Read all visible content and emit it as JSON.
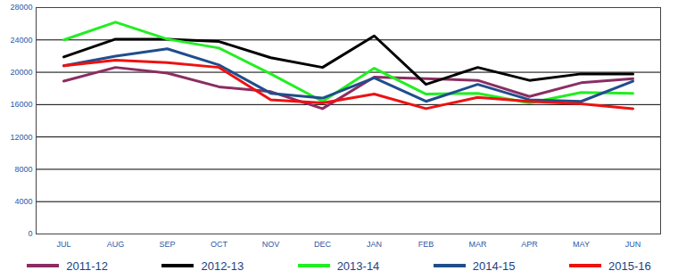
{
  "chart_data": {
    "type": "line",
    "categories": [
      "JUL",
      "AUG",
      "SEP",
      "OCT",
      "NOV",
      "DEC",
      "JAN",
      "FEB",
      "MAR",
      "APR",
      "MAY",
      "JUN"
    ],
    "series": [
      {
        "name": "2011-12",
        "color": "#8b2d62",
        "values": [
          18900,
          20600,
          19900,
          18200,
          17600,
          15500,
          19400,
          19200,
          19000,
          17000,
          18700,
          19200
        ]
      },
      {
        "name": "2012-13",
        "color": "#000000",
        "values": [
          21900,
          24100,
          24100,
          23800,
          21800,
          20600,
          24500,
          18500,
          20600,
          19000,
          19800,
          19800
        ]
      },
      {
        "name": "2013-14",
        "color": "#22ee22",
        "values": [
          24000,
          26200,
          24100,
          23000,
          19800,
          16400,
          20500,
          17300,
          17400,
          16200,
          17500,
          17400
        ]
      },
      {
        "name": "2014-15",
        "color": "#1f4e8c",
        "values": [
          20800,
          22000,
          22900,
          20900,
          17400,
          16800,
          19300,
          16400,
          18500,
          16600,
          16400,
          18900
        ]
      },
      {
        "name": "2015-16",
        "color": "#ee1111",
        "values": [
          20800,
          21500,
          21200,
          20600,
          16600,
          16200,
          17300,
          15500,
          16900,
          16400,
          16100,
          15500
        ]
      }
    ],
    "ylim": [
      0,
      28000
    ],
    "yticks": [
      0,
      4000,
      8000,
      12000,
      16000,
      20000,
      24000,
      28000
    ],
    "grid": true,
    "legend": "bottom"
  }
}
